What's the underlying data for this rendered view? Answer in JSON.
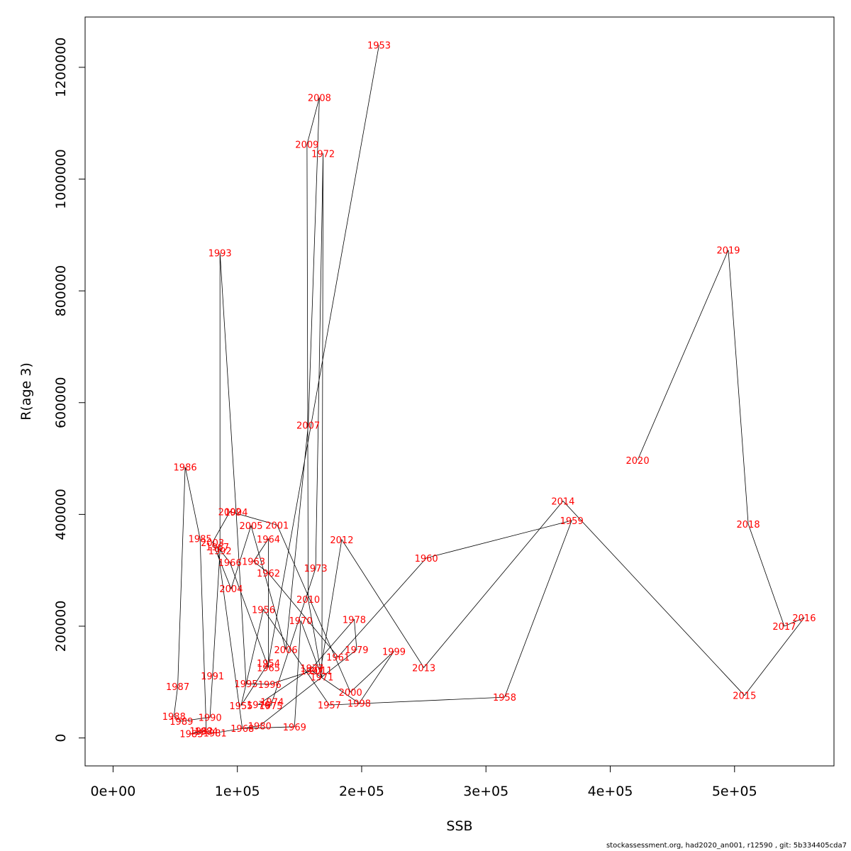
{
  "chart_data": {
    "type": "line",
    "title": "",
    "xlabel": "SSB",
    "ylabel": "R(age 3)",
    "xlim": [
      -22500,
      580000
    ],
    "ylim": [
      -50000,
      1290000
    ],
    "x_ticks": [
      0,
      100000,
      200000,
      300000,
      400000,
      500000
    ],
    "x_tick_labels": [
      "0e+00",
      "1e+05",
      "2e+05",
      "3e+05",
      "4e+05",
      "5e+05"
    ],
    "y_ticks": [
      0,
      200000,
      400000,
      600000,
      800000,
      1000000,
      1200000
    ],
    "y_tick_labels": [
      "0",
      "200000",
      "400000",
      "600000",
      "800000",
      "1000000",
      "1200000"
    ],
    "grid": false,
    "line_color": "#000000",
    "label_color": "#ff0000",
    "points": [
      {
        "year": "1953",
        "x": 214000,
        "y": 1240000
      },
      {
        "year": "1954",
        "x": 125000,
        "y": 134000
      },
      {
        "year": "1955",
        "x": 103000,
        "y": 58000
      },
      {
        "year": "1956",
        "x": 121000,
        "y": 230000
      },
      {
        "year": "1957",
        "x": 174000,
        "y": 59000
      },
      {
        "year": "1958",
        "x": 315000,
        "y": 73000
      },
      {
        "year": "1959",
        "x": 369000,
        "y": 389000
      },
      {
        "year": "1960",
        "x": 252000,
        "y": 322000
      },
      {
        "year": "1961",
        "x": 181000,
        "y": 145000
      },
      {
        "year": "1962",
        "x": 125000,
        "y": 295000
      },
      {
        "year": "1963",
        "x": 113000,
        "y": 316000
      },
      {
        "year": "1964",
        "x": 125000,
        "y": 356000
      },
      {
        "year": "1965",
        "x": 125000,
        "y": 126000
      },
      {
        "year": "1966",
        "x": 94000,
        "y": 314000
      },
      {
        "year": "1967",
        "x": 84000,
        "y": 342000
      },
      {
        "year": "1968",
        "x": 104000,
        "y": 17000
      },
      {
        "year": "1969",
        "x": 146000,
        "y": 20000
      },
      {
        "year": "1970",
        "x": 151000,
        "y": 210000
      },
      {
        "year": "1971",
        "x": 168000,
        "y": 109000
      },
      {
        "year": "1972",
        "x": 169000,
        "y": 1046000
      },
      {
        "year": "1973",
        "x": 163000,
        "y": 304000
      },
      {
        "year": "1974",
        "x": 128000,
        "y": 65000
      },
      {
        "year": "1975",
        "x": 127000,
        "y": 58000
      },
      {
        "year": "1976",
        "x": 117000,
        "y": 60000
      },
      {
        "year": "1977",
        "x": 160000,
        "y": 125000
      },
      {
        "year": "1978",
        "x": 194000,
        "y": 212000
      },
      {
        "year": "1979",
        "x": 196000,
        "y": 158000
      },
      {
        "year": "1980",
        "x": 118000,
        "y": 22000
      },
      {
        "year": "1981",
        "x": 82000,
        "y": 9000
      },
      {
        "year": "1982",
        "x": 71000,
        "y": 13000
      },
      {
        "year": "1983",
        "x": 63000,
        "y": 8000
      },
      {
        "year": "1984",
        "x": 75000,
        "y": 12000
      },
      {
        "year": "1985",
        "x": 70000,
        "y": 357000
      },
      {
        "year": "1986",
        "x": 58000,
        "y": 485000
      },
      {
        "year": "1987",
        "x": 52000,
        "y": 92000
      },
      {
        "year": "1988",
        "x": 49000,
        "y": 39000
      },
      {
        "year": "1989",
        "x": 55000,
        "y": 30000
      },
      {
        "year": "1990",
        "x": 78000,
        "y": 37000
      },
      {
        "year": "1991",
        "x": 80000,
        "y": 111000
      },
      {
        "year": "1992",
        "x": 86000,
        "y": 335000
      },
      {
        "year": "1993",
        "x": 86000,
        "y": 868000
      },
      {
        "year": "1994",
        "x": 99000,
        "y": 404000
      },
      {
        "year": "1995",
        "x": 107000,
        "y": 97000
      },
      {
        "year": "1996",
        "x": 126000,
        "y": 96000
      },
      {
        "year": "1997",
        "x": 160000,
        "y": 120000
      },
      {
        "year": "1998",
        "x": 198000,
        "y": 62000
      },
      {
        "year": "1999",
        "x": 226000,
        "y": 155000
      },
      {
        "year": "2000",
        "x": 191000,
        "y": 82000
      },
      {
        "year": "2001",
        "x": 132000,
        "y": 381000
      },
      {
        "year": "2002",
        "x": 94000,
        "y": 405000
      },
      {
        "year": "2003",
        "x": 80000,
        "y": 350000
      },
      {
        "year": "2004",
        "x": 95000,
        "y": 267000
      },
      {
        "year": "2005",
        "x": 111000,
        "y": 380000
      },
      {
        "year": "2006",
        "x": 139000,
        "y": 158000
      },
      {
        "year": "2007",
        "x": 157000,
        "y": 560000
      },
      {
        "year": "2008",
        "x": 166000,
        "y": 1146000
      },
      {
        "year": "2009",
        "x": 156000,
        "y": 1062000
      },
      {
        "year": "2010",
        "x": 157000,
        "y": 248000
      },
      {
        "year": "2011",
        "x": 167000,
        "y": 121000
      },
      {
        "year": "2012",
        "x": 184000,
        "y": 355000
      },
      {
        "year": "2013",
        "x": 250000,
        "y": 126000
      },
      {
        "year": "2014",
        "x": 362000,
        "y": 424000
      },
      {
        "year": "2015",
        "x": 508000,
        "y": 76000
      },
      {
        "year": "2016",
        "x": 556000,
        "y": 215000
      },
      {
        "year": "2017",
        "x": 540000,
        "y": 200000
      },
      {
        "year": "2018",
        "x": 511000,
        "y": 383000
      },
      {
        "year": "2019",
        "x": 495000,
        "y": 873000
      },
      {
        "year": "2020",
        "x": 422000,
        "y": 497000
      }
    ]
  },
  "footer": "stockassessment.org, had2020_an001, r12590 , git: 5b334405cda7"
}
